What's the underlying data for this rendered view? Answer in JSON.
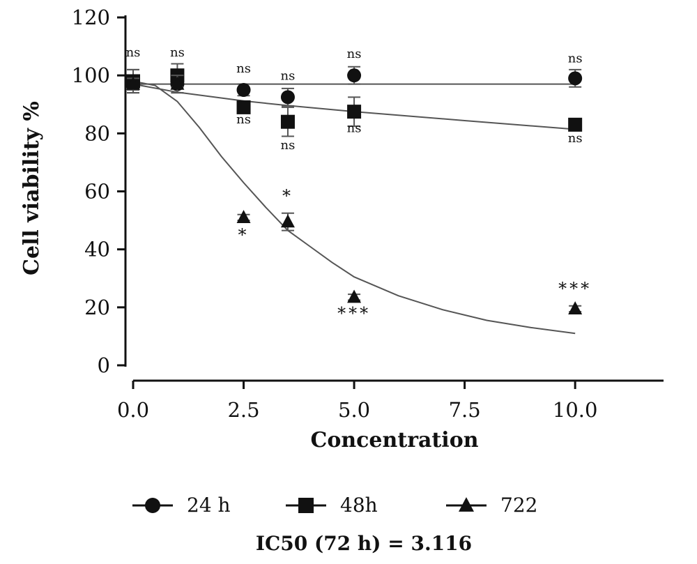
{
  "chart_data": {
    "type": "scatter",
    "xlabel": "Concentration",
    "ylabel": "Cell viability %",
    "xlim": [
      0,
      12
    ],
    "ylim": [
      0,
      120
    ],
    "xticks": [
      "0.0",
      "2.5",
      "5.0",
      "7.5",
      "10.0"
    ],
    "xtick_values": [
      0,
      2.5,
      5,
      7.5,
      10
    ],
    "yticks": [
      "0",
      "20",
      "40",
      "60",
      "80",
      "100",
      "120"
    ],
    "ytick_values": [
      0,
      20,
      40,
      60,
      80,
      100,
      120
    ],
    "grid": false,
    "legend_position": "bottom",
    "series": [
      {
        "name": "24 h",
        "marker": "circle",
        "x": [
          0,
          1,
          2.5,
          3.5,
          5,
          10
        ],
        "y": [
          98,
          97,
          95,
          92.5,
          100,
          99
        ],
        "err": [
          4,
          3,
          2,
          3,
          3,
          3
        ],
        "fit": [
          [
            0,
            97
          ],
          [
            10,
            97
          ]
        ]
      },
      {
        "name": "48h",
        "marker": "square",
        "x": [
          0,
          1,
          2.5,
          3.5,
          5,
          10
        ],
        "y": [
          98,
          100,
          89,
          84,
          87.5,
          83
        ],
        "err": [
          4,
          4,
          2,
          5,
          5,
          2
        ],
        "fit": [
          [
            0,
            97
          ],
          [
            1,
            94.2
          ],
          [
            2.5,
            91.2
          ],
          [
            3.5,
            89.6
          ],
          [
            5,
            87.5
          ],
          [
            7.5,
            84.4
          ],
          [
            10,
            81.4
          ]
        ]
      },
      {
        "name": "722",
        "marker": "triangle",
        "x": [
          0,
          1,
          2.5,
          3.5,
          5,
          10
        ],
        "y": [
          97,
          97,
          51,
          49.5,
          23.5,
          19.5
        ],
        "err": [
          2,
          3,
          1,
          3,
          1,
          1
        ],
        "fit": [
          [
            0,
            98
          ],
          [
            0.5,
            96.5
          ],
          [
            1,
            91
          ],
          [
            1.5,
            82
          ],
          [
            2,
            72
          ],
          [
            2.5,
            63
          ],
          [
            3,
            54.5
          ],
          [
            3.5,
            46.5
          ],
          [
            4,
            41
          ],
          [
            4.5,
            35.5
          ],
          [
            5,
            30.5
          ],
          [
            6,
            24
          ],
          [
            7,
            19.2
          ],
          [
            8,
            15.5
          ],
          [
            9,
            13
          ],
          [
            10,
            11
          ]
        ]
      }
    ],
    "annotations": [
      {
        "text": "ns",
        "x": 0,
        "y": 106.5,
        "style": "ns"
      },
      {
        "text": "ns",
        "x": 1,
        "y": 106.5,
        "style": "ns"
      },
      {
        "text": "ns",
        "x": 2.5,
        "y": 101,
        "style": "ns"
      },
      {
        "text": "ns",
        "x": 2.5,
        "y": 83.5,
        "style": "ns"
      },
      {
        "text": "ns",
        "x": 3.5,
        "y": 98.5,
        "style": "ns"
      },
      {
        "text": "ns",
        "x": 3.5,
        "y": 74.5,
        "style": "ns"
      },
      {
        "text": "ns",
        "x": 5,
        "y": 106,
        "style": "ns"
      },
      {
        "text": "ns",
        "x": 5,
        "y": 80.5,
        "style": "ns"
      },
      {
        "text": "ns",
        "x": 10,
        "y": 104.5,
        "style": "ns"
      },
      {
        "text": "ns",
        "x": 10,
        "y": 77,
        "style": "ns"
      },
      {
        "text": "*",
        "x": 2.5,
        "y": 43,
        "style": "star"
      },
      {
        "text": "*",
        "x": 3.5,
        "y": 56.5,
        "style": "star"
      },
      {
        "text": "***",
        "x": 5,
        "y": 16,
        "style": "star"
      },
      {
        "text": "***",
        "x": 10,
        "y": 24.5,
        "style": "star"
      }
    ]
  },
  "legend": [
    {
      "label": "24 h",
      "marker": "circle"
    },
    {
      "label": "48h",
      "marker": "square"
    },
    {
      "label": "722",
      "marker": "triangle"
    }
  ],
  "footer_text": "IC50 (72 h) = 3.116",
  "colors": {
    "ink": "#111111",
    "line": "#555555"
  }
}
